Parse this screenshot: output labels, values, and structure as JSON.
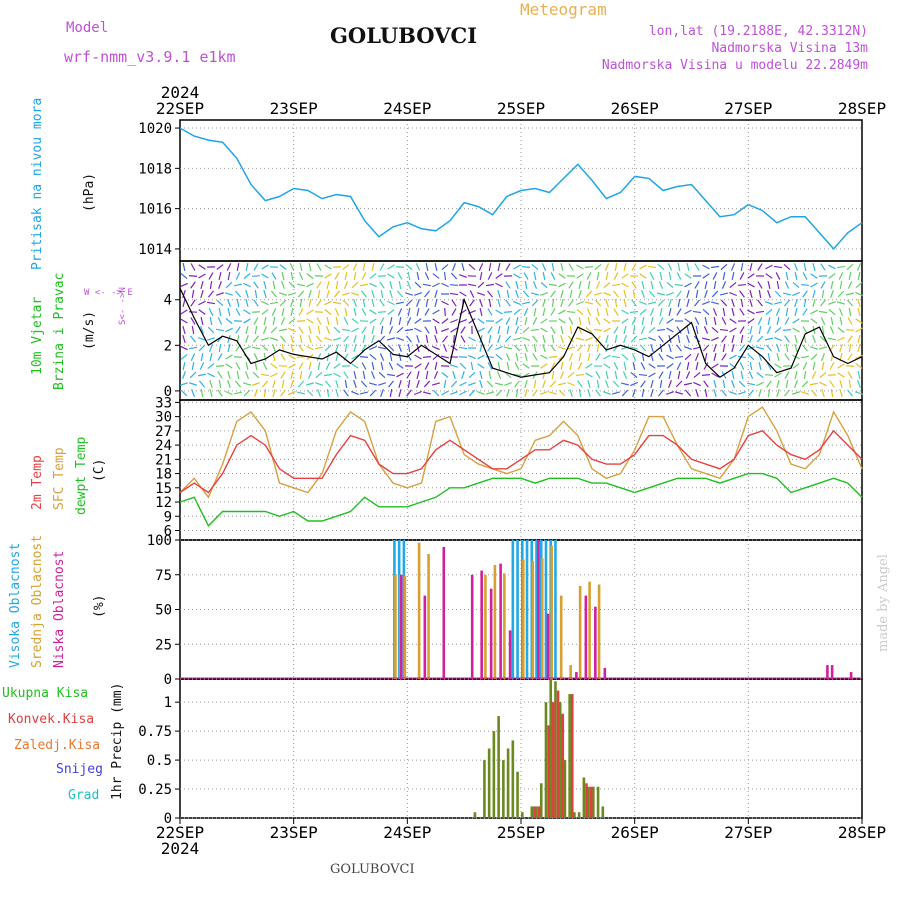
{
  "header": {
    "model_label": "Model",
    "model_name": "wrf-nmm_v3.9.1 e1km",
    "station": "GOLUBOVCI",
    "chart_kind": "Meteogram",
    "lonlat": "lon,lat (19.2188E, 42.3312N)",
    "altitude": "Nadmorska Visina 13m",
    "model_altitude": "Nadmorska Visina u modelu 22.2849m",
    "footer_station": "GOLUBOVCI",
    "watermark": "made by Angel"
  },
  "axis": {
    "year": "2024",
    "dates": [
      "22SEP",
      "23SEP",
      "24SEP",
      "25SEP",
      "26SEP",
      "27SEP",
      "28SEP"
    ]
  },
  "colors": {
    "pressure": "#1ea5e8",
    "temp2m": "#e84040",
    "sfc": "#d8a040",
    "dew": "#20c020",
    "high_cloud": "#20a8e8",
    "mid_cloud": "#d8a030",
    "low_cloud": "#d020a0",
    "precip_total": "#6a8a20",
    "precip_conv": "#e04040",
    "precip_frozen": "#e87830",
    "snow": "#4040e0",
    "hail": "#20c0c0"
  },
  "panels": {
    "pressure": {
      "label": "Pritisak na nivou mora",
      "unit": "(hPa)",
      "ticks": [
        "1020",
        "1018",
        "1016",
        "1014"
      ]
    },
    "wind": {
      "label1": "10m Vjetar",
      "label2": "Brzina i Pravac",
      "unit": "(m/s)",
      "ticks": [
        "4",
        "2",
        "0"
      ],
      "compass": "W <- -> E",
      "compass_ns": "S<- ->N"
    },
    "temp": {
      "label1": "2m Temp",
      "label2": "SFC Temp",
      "label3": "dewpt Temp",
      "unit": "(C)",
      "ticks": [
        "33",
        "30",
        "27",
        "24",
        "21",
        "18",
        "15",
        "12",
        "9",
        "6"
      ]
    },
    "cloud": {
      "label1": "Visoka Oblacnost",
      "label2": "Srednja Oblacnost",
      "label3": "Niska Oblacnost",
      "unit": "(%)",
      "ticks": [
        "100",
        "75",
        "50",
        "25",
        "0"
      ]
    },
    "precip": {
      "label_total": "Ukupna Kisa",
      "label_conv": "Konvek.Kisa",
      "label_frozen": "Zaledj.Kisa",
      "label_snow": "Snijeg",
      "label_hail": "Grad",
      "unit": "1hr Precip (mm)",
      "ticks": [
        "1",
        "0.75",
        "0.5",
        "0.25",
        "0"
      ]
    }
  },
  "chart_data": [
    {
      "type": "line",
      "title": "Pritisak na nivou mora",
      "ylabel": "(hPa)",
      "ylim": [
        1013.4,
        1020.4
      ],
      "x_hours_step": 3,
      "series": [
        {
          "name": "Pritisak na nivou mora",
          "values": [
            1020,
            1019.6,
            1019.4,
            1019.3,
            1018.5,
            1017.2,
            1016.4,
            1016.6,
            1017.0,
            1016.9,
            1016.5,
            1016.7,
            1016.6,
            1015.4,
            1014.6,
            1015.1,
            1015.3,
            1015.0,
            1014.9,
            1015.4,
            1016.3,
            1016.1,
            1015.7,
            1016.6,
            1016.9,
            1017.0,
            1016.8,
            1017.5,
            1018.2,
            1017.4,
            1016.5,
            1016.8,
            1017.6,
            1017.5,
            1016.9,
            1017.1,
            1017.2,
            1016.4,
            1015.6,
            1015.7,
            1016.2,
            1015.9,
            1015.3,
            1015.6,
            1015.6,
            1014.8,
            1014.0,
            1014.8,
            1015.3
          ]
        }
      ]
    },
    {
      "type": "line",
      "title": "10m Vjetar Brzina i Pravac",
      "ylabel": "(m/s)",
      "ylim": [
        -0.4,
        5.7
      ],
      "x_hours_step": 3,
      "series": [
        {
          "name": "10m Vjetar",
          "values": [
            4.5,
            3.2,
            2.0,
            2.4,
            2.2,
            1.2,
            1.4,
            1.8,
            1.6,
            1.5,
            1.4,
            1.7,
            1.2,
            1.8,
            2.2,
            1.6,
            1.5,
            2.0,
            1.6,
            1.2,
            4.0,
            2.5,
            1.0,
            0.8,
            0.6,
            0.7,
            0.8,
            1.5,
            2.8,
            2.5,
            1.8,
            2.0,
            1.8,
            1.5,
            2.0,
            2.5,
            3.0,
            1.2,
            0.6,
            1.0,
            2.0,
            1.5,
            0.8,
            1.0,
            2.5,
            2.8,
            1.5,
            1.2,
            1.5
          ]
        }
      ]
    },
    {
      "type": "line",
      "title": "2m Temp / SFC Temp / dewpt Temp",
      "ylabel": "(C)",
      "ylim": [
        4,
        33.5
      ],
      "x_hours_step": 3,
      "series": [
        {
          "name": "2m Temp",
          "values": [
            14,
            16,
            14,
            18,
            24,
            26,
            24,
            19,
            17,
            17,
            17,
            22,
            26,
            25,
            20,
            18,
            18,
            19,
            23,
            25,
            23,
            21,
            19,
            19,
            21,
            23,
            23,
            25,
            24,
            21,
            20,
            20,
            22,
            26,
            26,
            24,
            21,
            20,
            19,
            21,
            26,
            27,
            24,
            22,
            21,
            23,
            27,
            24,
            21
          ]
        },
        {
          "name": "SFC Temp",
          "values": [
            14,
            17,
            13,
            20,
            29,
            31,
            27,
            16,
            15,
            14,
            18,
            27,
            31,
            29,
            20,
            16,
            15,
            16,
            29,
            30,
            22,
            20,
            19,
            18,
            19,
            25,
            26,
            29,
            26,
            19,
            17,
            18,
            23,
            30,
            30,
            24,
            19,
            18,
            17,
            21,
            30,
            32,
            27,
            20,
            19,
            22,
            31,
            26,
            19
          ]
        },
        {
          "name": "dewpt Temp",
          "values": [
            12,
            13,
            7,
            10,
            10,
            10,
            10,
            9,
            10,
            8,
            8,
            9,
            10,
            13,
            11,
            11,
            11,
            12,
            13,
            15,
            15,
            16,
            17,
            17,
            17,
            16,
            17,
            17,
            17,
            16,
            16,
            15,
            14,
            15,
            16,
            17,
            17,
            17,
            16,
            17,
            18,
            18,
            17,
            14,
            15,
            16,
            17,
            16,
            13
          ]
        }
      ]
    },
    {
      "type": "bar",
      "title": "Visoka / Srednja / Niska Oblacnost",
      "ylabel": "(%)",
      "ylim": [
        0,
        100
      ],
      "x_hours_step": 1,
      "series": [
        {
          "name": "Visoka Oblacnost",
          "bars": [
            [
              45,
              100
            ],
            [
              46,
              100
            ],
            [
              47,
              100
            ],
            [
              70,
              100
            ],
            [
              71,
              100
            ],
            [
              72,
              100
            ],
            [
              73,
              100
            ],
            [
              74,
              100
            ],
            [
              75,
              100
            ],
            [
              76,
              100
            ],
            [
              77,
              100
            ],
            [
              78,
              100
            ],
            [
              79,
              100
            ]
          ]
        },
        {
          "name": "Srednja Oblacnost",
          "bars": [
            [
              45,
              75
            ],
            [
              46,
              75
            ],
            [
              47,
              74
            ],
            [
              50,
              98
            ],
            [
              52,
              90
            ],
            [
              64,
              75
            ],
            [
              66,
              82
            ],
            [
              68,
              76
            ],
            [
              72,
              86
            ],
            [
              74,
              85
            ],
            [
              76,
              87
            ],
            [
              78,
              96
            ],
            [
              80,
              60
            ],
            [
              82,
              10
            ],
            [
              84,
              67
            ],
            [
              86,
              70
            ],
            [
              88,
              68
            ]
          ]
        },
        {
          "name": "Niska Oblacnost",
          "bars": [
            [
              46,
              75
            ],
            [
              51,
              60
            ],
            [
              55,
              95
            ],
            [
              61,
              75
            ],
            [
              63,
              78
            ],
            [
              65,
              65
            ],
            [
              67,
              83
            ],
            [
              69,
              35
            ],
            [
              75,
              100
            ],
            [
              77,
              47
            ],
            [
              83,
              5
            ],
            [
              85,
              60
            ],
            [
              87,
              52
            ],
            [
              89,
              8
            ],
            [
              136,
              10
            ],
            [
              137,
              10
            ],
            [
              141,
              5
            ],
            [
              156,
              3
            ]
          ]
        }
      ]
    },
    {
      "type": "bar",
      "title": "1hr Precip",
      "ylabel": "(mm)",
      "ylim": [
        0,
        1.2
      ],
      "x_hours_step": 1,
      "series": [
        {
          "name": "Ukupna Kisa",
          "bars": [
            [
              62,
              0.05
            ],
            [
              64,
              0.5
            ],
            [
              65,
              0.6
            ],
            [
              66,
              0.75
            ],
            [
              67,
              0.88
            ],
            [
              68,
              0.5
            ],
            [
              69,
              0.6
            ],
            [
              70,
              0.67
            ],
            [
              71,
              0.4
            ],
            [
              72,
              0.05
            ],
            [
              74,
              0.1
            ],
            [
              75,
              0.1
            ],
            [
              76,
              0.3
            ],
            [
              77,
              1.0
            ],
            [
              78,
              1.2
            ],
            [
              79,
              1.18
            ],
            [
              80,
              1.0
            ],
            [
              81,
              0.5
            ],
            [
              82,
              1.07
            ],
            [
              83,
              0.05
            ],
            [
              84,
              0.05
            ],
            [
              85,
              0.35
            ],
            [
              86,
              0.27
            ],
            [
              87,
              0.27
            ],
            [
              88,
              0.27
            ],
            [
              89,
              0.1
            ]
          ]
        },
        {
          "name": "Konvek.Kisa",
          "bars": [
            [
              74,
              0.1
            ],
            [
              75,
              0.1
            ],
            [
              77,
              0.8
            ],
            [
              78,
              1.0
            ],
            [
              79,
              1.1
            ],
            [
              80,
              0.9
            ],
            [
              82,
              1.07
            ],
            [
              85,
              0.3
            ],
            [
              86,
              0.27
            ]
          ]
        }
      ]
    }
  ]
}
